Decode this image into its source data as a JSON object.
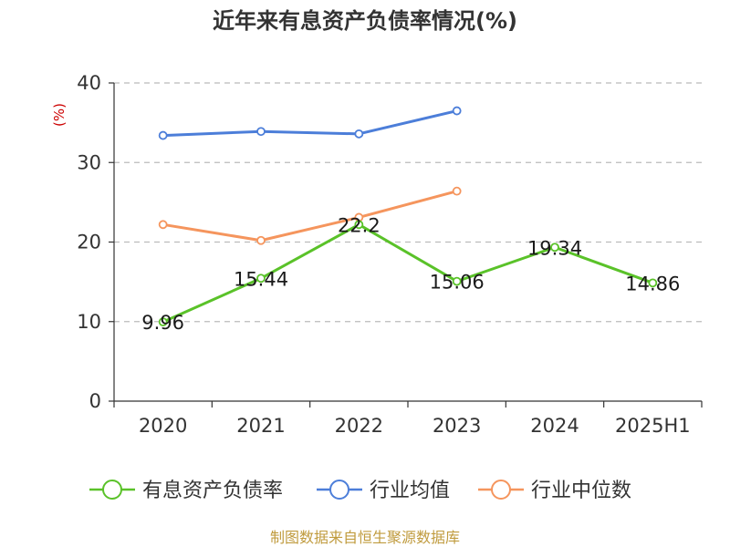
{
  "chart_data": {
    "type": "line",
    "title": "近年来有息资产负债率情况(%)",
    "ylabel": "(%)",
    "xlabel": "",
    "ylim": [
      0,
      40
    ],
    "yticks": [
      "0",
      "10",
      "20",
      "30",
      "40"
    ],
    "grid": true,
    "categories": [
      "2020",
      "2021",
      "2022",
      "2023",
      "2024",
      "2025H1"
    ],
    "series": [
      {
        "name": "有息资产负债率",
        "color": "#5ac229",
        "values": [
          9.96,
          15.44,
          22.2,
          15.06,
          19.34,
          14.86
        ],
        "labels": [
          "9.96",
          "15.44",
          "22.2",
          "15.06",
          "19.34",
          "14.86"
        ]
      },
      {
        "name": "行业均值",
        "color": "#4c7ed9",
        "values": [
          33.4,
          33.9,
          33.6,
          36.5,
          null,
          null
        ]
      },
      {
        "name": "行业中位数",
        "color": "#f5955d",
        "values": [
          22.2,
          20.2,
          23.1,
          26.4,
          null,
          null
        ]
      }
    ],
    "legend_position": "bottom"
  },
  "source": "制图数据来自恒生聚源数据库",
  "colors": {
    "axis": "#333333",
    "grid": "#bbbbbb",
    "unit": "#cc0000",
    "source": "#c09b3e"
  }
}
